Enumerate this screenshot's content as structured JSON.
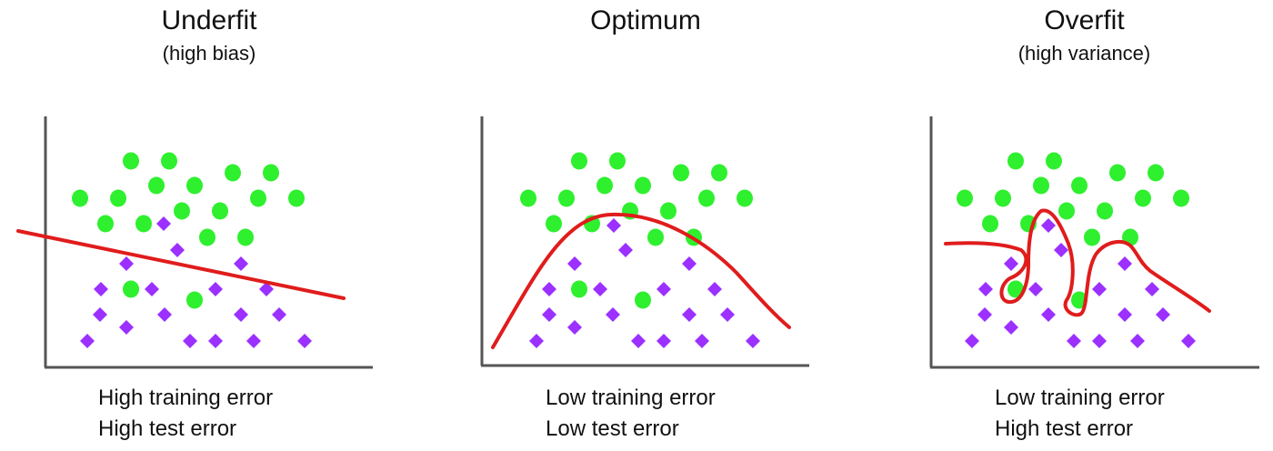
{
  "colors": {
    "dot": "#2ef02e",
    "diamond": "#9b30ff",
    "curve": "#e01c1c",
    "axis": "#555555"
  },
  "panels": [
    {
      "id": "underfit",
      "title": "Underfit",
      "subtitle": "(high bias)",
      "caption": [
        "High training error",
        "High test error"
      ],
      "fit": "straight-line"
    },
    {
      "id": "optimum",
      "title": "Optimum",
      "subtitle": "",
      "caption": [
        "Low training error",
        "Low test error"
      ],
      "fit": "smooth-curve"
    },
    {
      "id": "overfit",
      "title": "Overfit",
      "subtitle": "(high variance)",
      "caption": [
        "Low training error",
        "High test error"
      ],
      "fit": "wiggly-curve"
    }
  ]
}
